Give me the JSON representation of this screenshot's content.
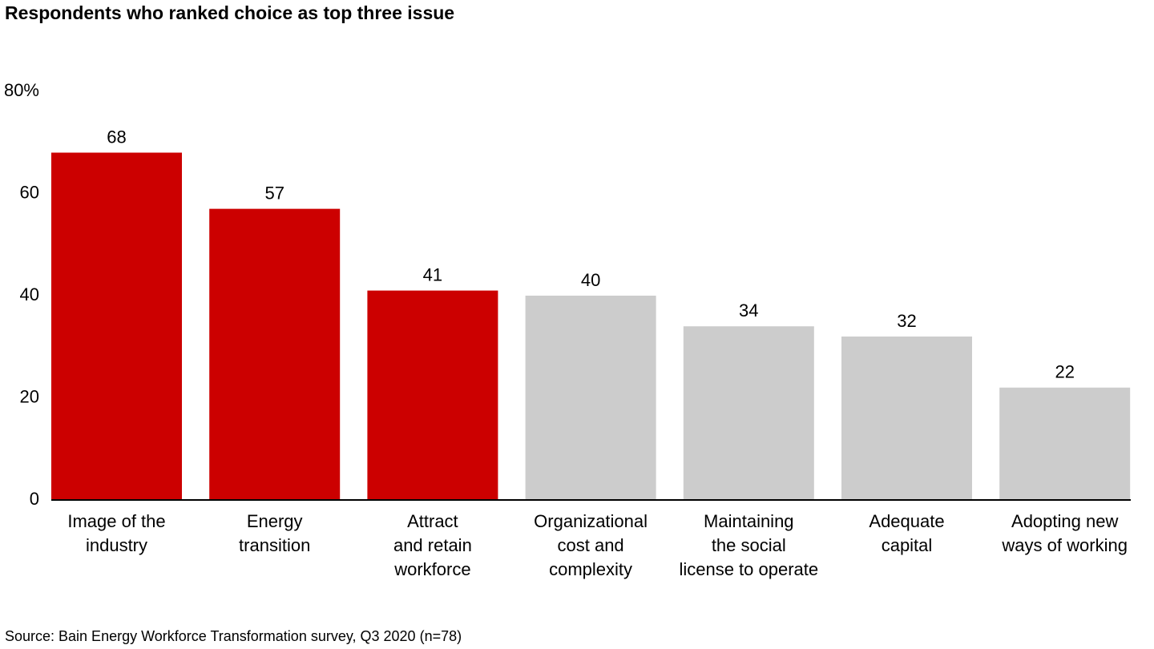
{
  "chart_data": {
    "type": "bar",
    "title": "Respondents who ranked choice as top three issue",
    "categories": [
      "Image of the\nindustry",
      "Energy\ntransition",
      "Attract\nand retain\nworkforce",
      "Organizational\ncost and\ncomplexity",
      "Maintaining\nthe social\nlicense to operate",
      "Adequate\ncapital",
      "Adopting new\nways of working"
    ],
    "values": [
      68,
      57,
      41,
      40,
      34,
      32,
      22
    ],
    "colors": [
      "#cc0000",
      "#cc0000",
      "#cc0000",
      "#cccccc",
      "#cccccc",
      "#cccccc",
      "#cccccc"
    ],
    "ylim": [
      0,
      80
    ],
    "yticks": [
      0,
      20,
      40,
      60,
      {
        "value": 80,
        "label": "80%"
      }
    ],
    "grid": false,
    "source": "Source: Bain Energy Workforce Transformation survey, Q3 2020 (n=78)"
  }
}
